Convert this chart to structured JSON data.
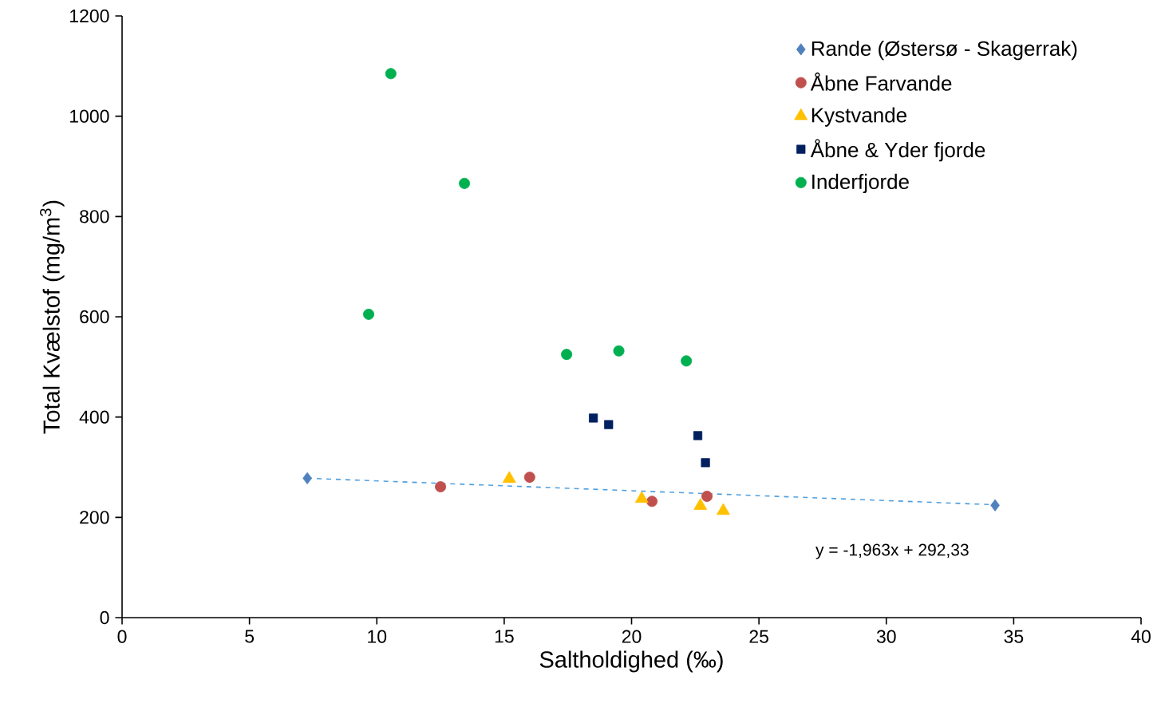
{
  "chart_data": {
    "type": "scatter",
    "xlabel": "Saltholdighed (‰)",
    "ylabel": "Total Kvælstof (mg/m$^{3}$)",
    "xlim": [
      0,
      40
    ],
    "ylim": [
      0,
      1200
    ],
    "xticks": [
      0,
      5,
      10,
      15,
      20,
      25,
      30,
      35,
      40
    ],
    "yticks": [
      0,
      200,
      400,
      600,
      800,
      1000,
      1200
    ],
    "legend": "top right",
    "grid": false,
    "series": [
      {
        "name": "Rande (Østersø - Skagerrak)",
        "color": "#4f81bd",
        "marker": "diamond",
        "x": [
          7.27,
          34.27
        ],
        "values": [
          278,
          224
        ]
      },
      {
        "name": "Åbne Farvande",
        "color": "#c0504d",
        "marker": "circle",
        "x": [
          12.5,
          16.0,
          20.8,
          22.96
        ],
        "values": [
          261,
          280,
          232,
          242
        ]
      },
      {
        "name": "Kystvande",
        "color": "#ffc000",
        "marker": "triangle",
        "x": [
          15.2,
          20.4,
          22.7,
          23.6
        ],
        "values": [
          277,
          237,
          223,
          213
        ]
      },
      {
        "name": "Åbne & Yder fjorde",
        "color": "#002060",
        "marker": "square",
        "x": [
          18.5,
          19.1,
          22.6,
          22.9
        ],
        "values": [
          398,
          385,
          363,
          309
        ]
      },
      {
        "name": "Inderfjorde",
        "color": "#00b050",
        "marker": "circle",
        "x": [
          10.55,
          13.44,
          9.68,
          17.45,
          19.5,
          22.15
        ],
        "values": [
          1085,
          866,
          605,
          525,
          532,
          512
        ]
      },
      {
        "type": "line",
        "color": "#4f9fdf",
        "marker": "none",
        "line_style": "dashed",
        "x": [
          7.27,
          34.27
        ],
        "values": [
          278.06,
          225.06
        ]
      }
    ],
    "annotations": [
      "y = -1,963x + 292,33"
    ]
  }
}
